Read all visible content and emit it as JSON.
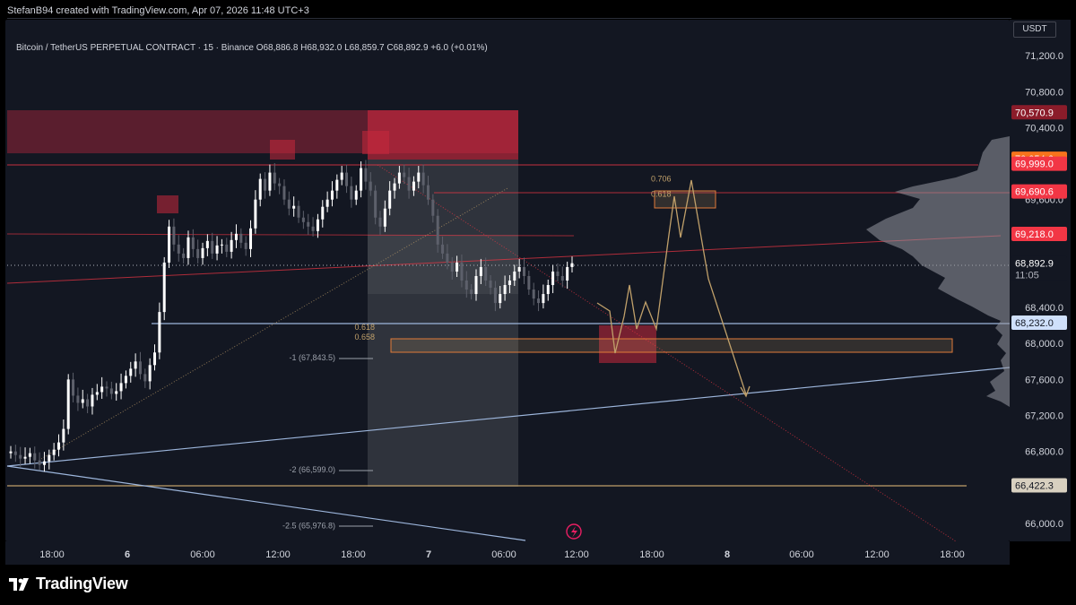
{
  "header": {
    "attribution": "StefanB94 created with TradingView.com, Apr 07, 2026 11:48 UTC+3"
  },
  "legend": {
    "symbol": "Bitcoin / TetherUS PERPETUAL CONTRACT · 15 · Binance",
    "ohlc": "O68,886.8  H68,932.0  L68,859.7  C68,892.9  +6.0 (+0.01%)"
  },
  "currency": "USDT",
  "brand": "TradingView",
  "colors": {
    "background": "#131722",
    "up_candle": "#ffffff",
    "supply_zone": "#b2283d",
    "fib_line": "#c0a06a",
    "support_line": "#9db6dc",
    "price_tag_red": "#f23645",
    "price_tag_orange": "#f7731c"
  },
  "chart_data": {
    "type": "candlestick",
    "symbol": "Bitcoin / TetherUS PERPETUAL CONTRACT",
    "timeframe": "15",
    "exchange": "Binance",
    "ylim": [
      65800,
      71600
    ],
    "x_ticks": [
      "18:00",
      "6",
      "06:00",
      "12:00",
      "18:00",
      "7",
      "06:00",
      "12:00",
      "18:00",
      "8",
      "06:00",
      "12:00",
      "18:00"
    ],
    "y_ticks": [
      {
        "label": "71,200.0",
        "value": 71200
      },
      {
        "label": "70,800.0",
        "value": 70800
      },
      {
        "label": "70,400.0",
        "value": 70400
      },
      {
        "label": "69,600.0",
        "value": 69600
      },
      {
        "label": "68,400.0",
        "value": 68400
      },
      {
        "label": "68,000.0",
        "value": 68000
      },
      {
        "label": "67,600.0",
        "value": 67600
      },
      {
        "label": "67,200.0",
        "value": 67200
      },
      {
        "label": "66,800.0",
        "value": 66800
      },
      {
        "label": "66,000.0",
        "value": 66000
      }
    ],
    "price_tags": [
      {
        "label": "70,570.9",
        "value": 70570.9,
        "style": "darkred"
      },
      {
        "label": "70,054.6",
        "value": 70054.6,
        "style": "orange"
      },
      {
        "label": "69,999.0",
        "value": 69999.0,
        "style": "red"
      },
      {
        "label": "69,690.6",
        "value": 69690.6,
        "style": "red"
      },
      {
        "label": "69,218.0",
        "value": 69218.0,
        "style": "red"
      },
      {
        "label": "68,892.9",
        "value": 68892.9,
        "style": "current",
        "sub": "11:05"
      },
      {
        "label": "68,232.0",
        "value": 68232.0,
        "style": "blue"
      },
      {
        "label": "66,422.3",
        "value": 66422.3,
        "style": "tan"
      }
    ],
    "fib_labels": [
      {
        "label": "0.706",
        "value": 69830
      },
      {
        "label": "0.618",
        "value": 69660
      },
      {
        "label": "0.618",
        "value": 68180
      },
      {
        "label": "0.658",
        "value": 68070
      },
      {
        "label": "-1 (67,843.5)",
        "value": 67843.5
      },
      {
        "label": "-2 (66,599.0)",
        "value": 66599.0
      },
      {
        "label": "-2.5 (65,976.8)",
        "value": 65976.8
      }
    ],
    "candles_close": [
      66800,
      66760,
      66720,
      66740,
      66780,
      66700,
      66650,
      66690,
      66760,
      66820,
      66900,
      67050,
      67600,
      67420,
      67340,
      67380,
      67300,
      67430,
      67460,
      67520,
      67500,
      67440,
      67470,
      67560,
      67640,
      67720,
      67800,
      67660,
      67580,
      67760,
      67900,
      68350,
      68900,
      69300,
      69100,
      69000,
      68950,
      69180,
      69050,
      68950,
      69060,
      69140,
      69000,
      69090,
      69100,
      69020,
      69150,
      69220,
      69120,
      69050,
      69280,
      69600,
      69830,
      69700,
      69900,
      69780,
      69750,
      69600,
      69500,
      69530,
      69400,
      69350,
      69300,
      69250,
      69380,
      69520,
      69600,
      69700,
      69820,
      69900,
      69750,
      69600,
      69700,
      69950,
      69800,
      69700,
      69400,
      69300,
      69500,
      69700,
      69780,
      69900,
      69850,
      69700,
      69800,
      69900,
      69760,
      69600,
      69420,
      69100,
      69000,
      68900,
      68800,
      68900,
      68700,
      68600,
      68550,
      68750,
      68850,
      68700,
      68620,
      68450,
      68550,
      68650,
      68700,
      68800,
      68850,
      68750,
      68600,
      68500,
      68450,
      68550,
      68650,
      68800,
      68750,
      68700,
      68850,
      68892.9
    ],
    "annotations": [
      "supply zones",
      "fib retracement levels",
      "projected path"
    ]
  }
}
